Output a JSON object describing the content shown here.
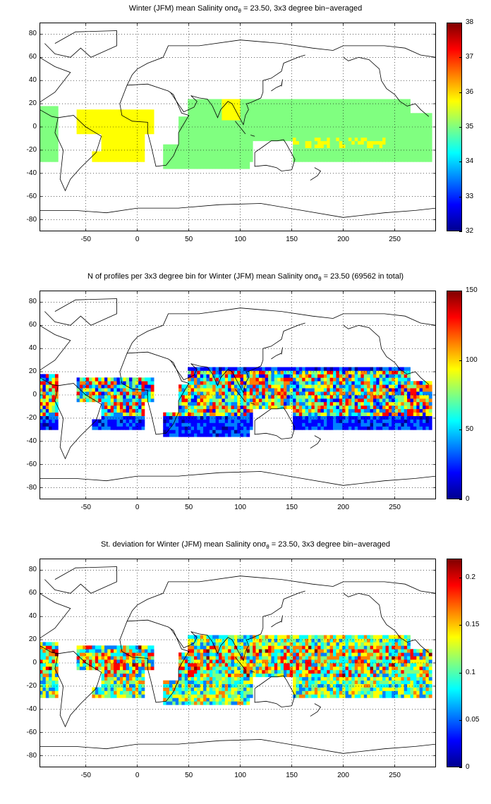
{
  "colormap": [
    "#00008f",
    "#0000ff",
    "#0080ff",
    "#00ffff",
    "#80ff80",
    "#ffff00",
    "#ff8000",
    "#ff0000",
    "#800000"
  ],
  "chart_data": [
    {
      "type": "heatmap",
      "title_pre": "Winter (JFM) mean Salinity on",
      "title_sym": "σ",
      "title_sub": "θ",
      "title_post": " = 23.50, 3x3 degree bin−averaged",
      "xlim": [
        -95,
        290
      ],
      "ylim": [
        -90,
        90
      ],
      "xticks": [
        "-50",
        "0",
        "50",
        "100",
        "150",
        "200",
        "250"
      ],
      "xtick_values": [
        -50,
        0,
        50,
        100,
        150,
        200,
        250
      ],
      "yticks": [
        "80",
        "60",
        "40",
        "20",
        "0",
        "-20",
        "-40",
        "-60",
        "-80"
      ],
      "ytick_values": [
        80,
        60,
        40,
        20,
        0,
        -20,
        -40,
        -60,
        -80
      ],
      "clim": [
        32,
        38
      ],
      "cticks": [
        "38",
        "37",
        "36",
        "35",
        "34",
        "33",
        "32"
      ],
      "ctick_values": [
        38,
        37,
        36,
        35,
        34,
        33,
        32
      ],
      "grid": true,
      "field": "salinity"
    },
    {
      "type": "heatmap",
      "title_pre": "N of profiles per 3x3 degree bin for Winter (JFM) mean Salinity on",
      "title_sym": "σ",
      "title_sub": "θ",
      "title_post": " = 23.50 (69562 in total)",
      "xlim": [
        -95,
        290
      ],
      "ylim": [
        -90,
        90
      ],
      "xticks": [
        "-50",
        "0",
        "50",
        "100",
        "150",
        "200",
        "250"
      ],
      "xtick_values": [
        -50,
        0,
        50,
        100,
        150,
        200,
        250
      ],
      "yticks": [
        "80",
        "60",
        "40",
        "20",
        "0",
        "-20",
        "-40",
        "-60",
        "-80"
      ],
      "ytick_values": [
        80,
        60,
        40,
        20,
        0,
        -20,
        -40,
        -60,
        -80
      ],
      "clim": [
        0,
        150
      ],
      "cticks": [
        "150",
        "100",
        "50",
        "0"
      ],
      "ctick_values": [
        150,
        100,
        50,
        0
      ],
      "grid": true,
      "field": "count"
    },
    {
      "type": "heatmap",
      "title_pre": "St. deviation for Winter (JFM) mean Salinity on",
      "title_sym": "σ",
      "title_sub": "θ",
      "title_post": " = 23.50, 3x3 degree bin−averaged",
      "xlim": [
        -95,
        290
      ],
      "ylim": [
        -90,
        90
      ],
      "xticks": [
        "-50",
        "0",
        "50",
        "100",
        "150",
        "200",
        "250"
      ],
      "xtick_values": [
        -50,
        0,
        50,
        100,
        150,
        200,
        250
      ],
      "yticks": [
        "80",
        "60",
        "40",
        "20",
        "0",
        "-20",
        "-40",
        "-60",
        "-80"
      ],
      "ytick_values": [
        80,
        60,
        40,
        20,
        0,
        -20,
        -40,
        -60,
        -80
      ],
      "clim": [
        0,
        0.22
      ],
      "cticks": [
        "0.2",
        "0.15",
        "0.1",
        "0.05",
        "0"
      ],
      "ctick_values": [
        0.2,
        0.15,
        0.1,
        0.05,
        0
      ],
      "grid": true,
      "field": "stdev"
    }
  ]
}
